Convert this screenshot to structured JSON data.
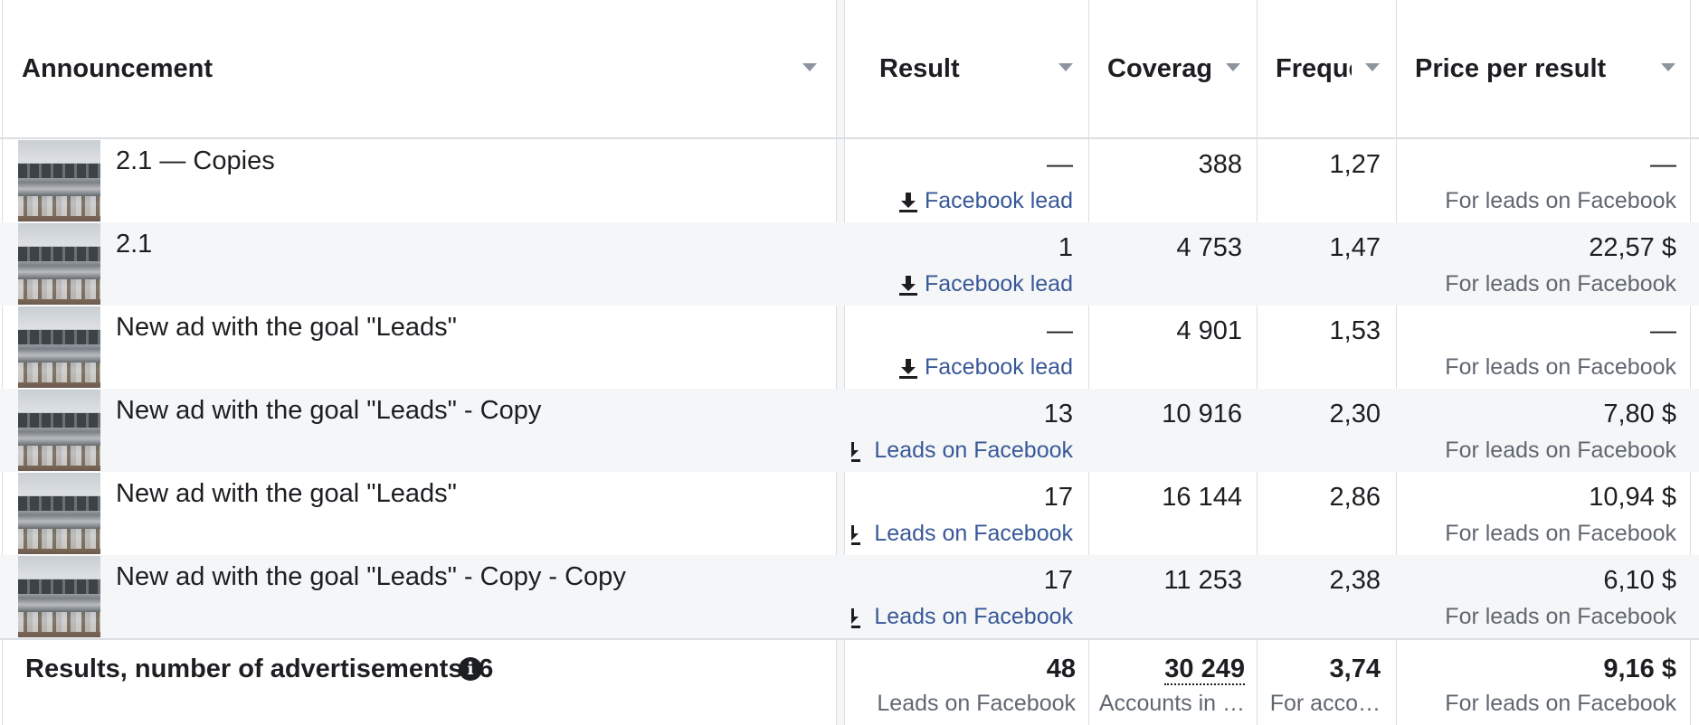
{
  "columns": {
    "announcement": "Announcement",
    "result": "Result",
    "coverage": "Coverage",
    "frequency": "Freque",
    "price": "Price per result"
  },
  "icons": {
    "sort": "chevron-down-icon",
    "result_type": "download-icon",
    "info": "info-icon"
  },
  "rows": [
    {
      "name": "2.1 — Copies",
      "result": "—",
      "result_type": "Facebook lead",
      "coverage": "388",
      "frequency": "1,27",
      "price": "—",
      "price_sub": "For leads on Facebook"
    },
    {
      "name": "2.1",
      "result": "1",
      "result_type": "Facebook lead",
      "coverage": "4 753",
      "frequency": "1,47",
      "price": "22,57 $",
      "price_sub": "For leads on Facebook"
    },
    {
      "name": "New ad with the goal \"Leads\"",
      "result": "—",
      "result_type": "Facebook lead",
      "coverage": "4 901",
      "frequency": "1,53",
      "price": "—",
      "price_sub": "For leads on Facebook"
    },
    {
      "name": "New ad with the goal \"Leads\" - Copy",
      "result": "13",
      "result_type": "Leads on Facebook",
      "coverage": "10 916",
      "frequency": "2,30",
      "price": "7,80 $",
      "price_sub": "For leads on Facebook"
    },
    {
      "name": "New ad with the goal \"Leads\"",
      "result": "17",
      "result_type": "Leads on Facebook",
      "coverage": "16 144",
      "frequency": "2,86",
      "price": "10,94 $",
      "price_sub": "For leads on Facebook"
    },
    {
      "name": "New ad with the goal \"Leads\" - Copy - Copy",
      "result": "17",
      "result_type": "Leads on Facebook",
      "coverage": "11 253",
      "frequency": "2,38",
      "price": "6,10 $",
      "price_sub": "For leads on Facebook"
    }
  ],
  "totals": {
    "label": "Results, number of advertisements: 6",
    "result": "48",
    "result_sub": "Leads on Facebook",
    "coverage": "30 249",
    "coverage_sub": "Accounts in …",
    "frequency": "3,74",
    "frequency_sub": "For acco…",
    "price": "9,16 $",
    "price_sub": "For leads on Facebook"
  },
  "colors": {
    "link": "#385898",
    "gray": "#606770",
    "border": "#dadde1",
    "alt_row": "#f5f6f7"
  }
}
